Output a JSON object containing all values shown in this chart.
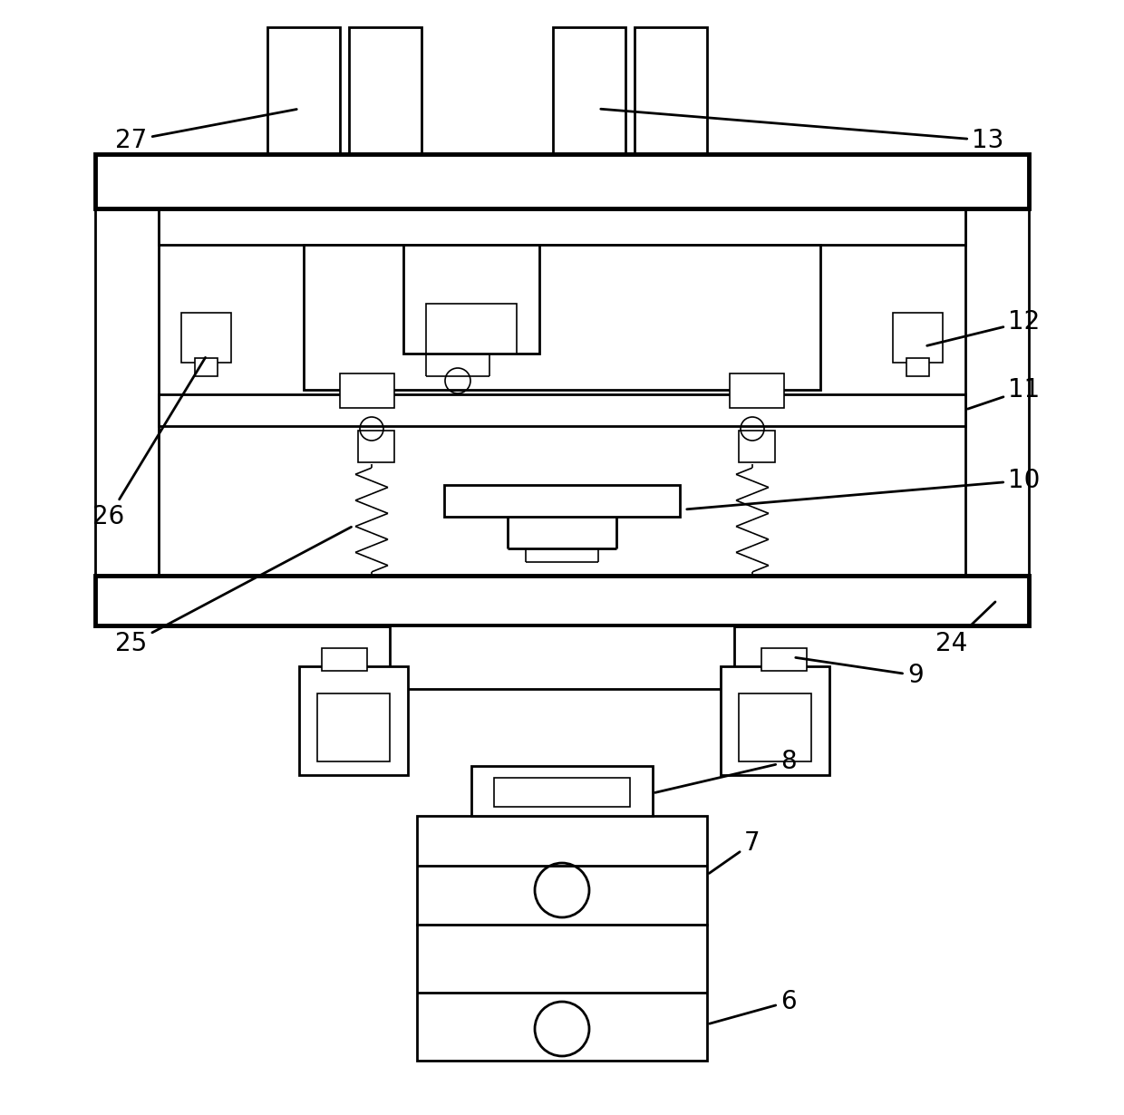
{
  "bg_color": "#ffffff",
  "lc": "#000000",
  "fig_width": 12.4,
  "fig_height": 12.3,
  "lw_thick": 3.5,
  "lw_med": 2.0,
  "lw_thin": 1.2,
  "fs": 20
}
